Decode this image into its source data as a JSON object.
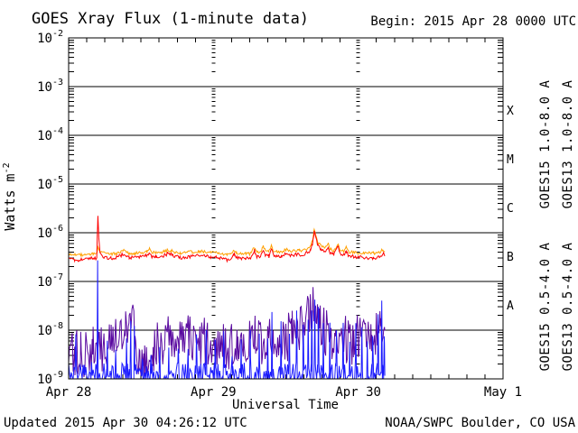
{
  "header": {
    "begin_label": "Begin:  2015 Apr 28 0000 UTC"
  },
  "footer": {
    "updated": "Updated 2015 Apr 30 04:26:12 UTC",
    "source": "NOAA/SWPC Boulder, CO USA"
  },
  "chart_data": {
    "type": "line",
    "title": "GOES Xray Flux (1-minute data)",
    "xlabel": "Universal Time",
    "ylabel_base": "Watts m",
    "ylabel_exp": "-2",
    "x_unit": "hours since 2015 Apr 28 00:00 UTC",
    "x_range_hours": [
      0,
      72
    ],
    "x_minor_tick_hours": 3,
    "x_day_ticks": [
      {
        "t": 0,
        "label": "Apr 28"
      },
      {
        "t": 24,
        "label": "Apr 29"
      },
      {
        "t": 48,
        "label": "Apr 30"
      },
      {
        "t": 72,
        "label": "May 1"
      }
    ],
    "y_log_range": [
      -9,
      -2
    ],
    "y_decade_exponents": [
      -2,
      -3,
      -4,
      -5,
      -6,
      -7,
      -8,
      -9
    ],
    "flare_classes": [
      {
        "label": "X",
        "log_center": -3.5
      },
      {
        "label": "M",
        "log_center": -4.5
      },
      {
        "label": "C",
        "log_center": -5.5
      },
      {
        "label": "B",
        "log_center": -6.5
      },
      {
        "label": "A",
        "log_center": -7.5
      }
    ],
    "grid": "decade horizontal lines solid; day boundaries shown as broken tick columns",
    "legend_position": "right, rotated 90deg",
    "data_end_hour": 52.4,
    "noise_seed": 20150430,
    "series": [
      {
        "id": "goes13-long",
        "name": "GOES13 1.0-8.0 A",
        "color": "#ffa000",
        "noise_log": 0.03,
        "points": [
          [
            0,
            3.6e-07
          ],
          [
            1,
            3.5e-07
          ],
          [
            2,
            3.5e-07
          ],
          [
            3,
            3.6e-07
          ],
          [
            4,
            3.7e-07
          ],
          [
            4.7,
            3.8e-07
          ],
          [
            4.85,
            5.2e-07
          ],
          [
            5.0,
            4.4e-07
          ],
          [
            5.5,
            4e-07
          ],
          [
            6,
            3.8e-07
          ],
          [
            7,
            3.7e-07
          ],
          [
            8,
            3.8e-07
          ],
          [
            9.2,
            4.4e-07
          ],
          [
            10,
            3.8e-07
          ],
          [
            11,
            3.8e-07
          ],
          [
            12,
            3.9e-07
          ],
          [
            13,
            4.1e-07
          ],
          [
            13.4,
            4.6e-07
          ],
          [
            13.8,
            4e-07
          ],
          [
            14.5,
            3.9e-07
          ],
          [
            15.5,
            4e-07
          ],
          [
            16.4,
            4.4e-07
          ],
          [
            17,
            4.3e-07
          ],
          [
            17.6,
            4e-07
          ],
          [
            18.5,
            3.9e-07
          ],
          [
            19.5,
            3.9e-07
          ],
          [
            20.5,
            4.1e-07
          ],
          [
            21.5,
            4.2e-07
          ],
          [
            22.5,
            4.1e-07
          ],
          [
            23.5,
            4e-07
          ],
          [
            24.5,
            3.9e-07
          ],
          [
            25.5,
            3.7e-07
          ],
          [
            26.3,
            3.5e-07
          ],
          [
            27,
            3.6e-07
          ],
          [
            27.4,
            4.4e-07
          ],
          [
            27.8,
            3.9e-07
          ],
          [
            28.5,
            3.7e-07
          ],
          [
            29.3,
            3.8e-07
          ],
          [
            30,
            3.7e-07
          ],
          [
            30.8,
            5.1e-07
          ],
          [
            31.1,
            4.1e-07
          ],
          [
            31.8,
            3.9e-07
          ],
          [
            32.2,
            5.3e-07
          ],
          [
            32.6,
            4.3e-07
          ],
          [
            33.2,
            4.1e-07
          ],
          [
            33.6,
            5.5e-07
          ],
          [
            33.9,
            4.3e-07
          ],
          [
            34.6,
            4e-07
          ],
          [
            35.3,
            3.9e-07
          ],
          [
            35.8,
            4.4e-07
          ],
          [
            36.3,
            4.5e-07
          ],
          [
            36.9,
            4.2e-07
          ],
          [
            37.5,
            4.4e-07
          ],
          [
            38.2,
            4.3e-07
          ],
          [
            39,
            4.4e-07
          ],
          [
            39.6,
            4.7e-07
          ],
          [
            40.1,
            5.2e-07
          ],
          [
            40.4,
            6.8e-07
          ],
          [
            40.7,
            1.15e-06
          ],
          [
            40.95,
            9e-07
          ],
          [
            41.3,
            6.4e-07
          ],
          [
            41.8,
            5.4e-07
          ],
          [
            42.4,
            4.8e-07
          ],
          [
            43.0,
            6e-07
          ],
          [
            43.3,
            4.6e-07
          ],
          [
            44.0,
            4.3e-07
          ],
          [
            44.7,
            6.2e-07
          ],
          [
            45.0,
            4.4e-07
          ],
          [
            45.6,
            4.1e-07
          ],
          [
            46.0,
            5.2e-07
          ],
          [
            46.4,
            4.1e-07
          ],
          [
            47.5,
            3.9e-07
          ],
          [
            49,
            3.8e-07
          ],
          [
            50.5,
            3.8e-07
          ],
          [
            51.5,
            3.9e-07
          ],
          [
            52.1,
            4.6e-07
          ],
          [
            52.4,
            4e-07
          ]
        ]
      },
      {
        "id": "goes15-long",
        "name": "GOES15 1.0-8.0 A",
        "color": "#ff0000",
        "noise_log": 0.035,
        "points": [
          [
            0,
            2.9e-07
          ],
          [
            1,
            2.8e-07
          ],
          [
            1.6,
            2.6e-07
          ],
          [
            2.2,
            2.8e-07
          ],
          [
            3,
            2.9e-07
          ],
          [
            4,
            3e-07
          ],
          [
            4.65,
            3e-07
          ],
          [
            4.75,
            9e-07
          ],
          [
            4.85,
            2.4e-06
          ],
          [
            5.0,
            8e-07
          ],
          [
            5.2,
            4.2e-07
          ],
          [
            5.6,
            3.3e-07
          ],
          [
            6,
            3.1e-07
          ],
          [
            7,
            3e-07
          ],
          [
            8,
            3.1e-07
          ],
          [
            9.2,
            3.7e-07
          ],
          [
            10,
            3.1e-07
          ],
          [
            11,
            3.1e-07
          ],
          [
            12,
            3.2e-07
          ],
          [
            13,
            3.4e-07
          ],
          [
            13.4,
            3.9e-07
          ],
          [
            13.8,
            3.3e-07
          ],
          [
            14.5,
            3.2e-07
          ],
          [
            15.5,
            3.3e-07
          ],
          [
            16.4,
            3.7e-07
          ],
          [
            17,
            3.6e-07
          ],
          [
            17.6,
            3.3e-07
          ],
          [
            18.5,
            3.1e-07
          ],
          [
            19.5,
            3.1e-07
          ],
          [
            20.5,
            3.3e-07
          ],
          [
            21.5,
            3.4e-07
          ],
          [
            22.5,
            3.3e-07
          ],
          [
            23.5,
            3.2e-07
          ],
          [
            24.5,
            3.1e-07
          ],
          [
            25.5,
            2.9e-07
          ],
          [
            26.3,
            2.7e-07
          ],
          [
            27,
            2.8e-07
          ],
          [
            27.4,
            3.6e-07
          ],
          [
            27.8,
            3.1e-07
          ],
          [
            28.5,
            2.9e-07
          ],
          [
            29.3,
            3e-07
          ],
          [
            30,
            2.9e-07
          ],
          [
            30.8,
            4.3e-07
          ],
          [
            31.1,
            3.3e-07
          ],
          [
            31.8,
            3.1e-07
          ],
          [
            32.2,
            4.5e-07
          ],
          [
            32.6,
            3.5e-07
          ],
          [
            33.2,
            3.3e-07
          ],
          [
            33.6,
            4.7e-07
          ],
          [
            33.9,
            3.5e-07
          ],
          [
            34.6,
            3.2e-07
          ],
          [
            35.3,
            3.1e-07
          ],
          [
            35.8,
            3.6e-07
          ],
          [
            36.3,
            3.7e-07
          ],
          [
            36.9,
            3.4e-07
          ],
          [
            37.5,
            3.6e-07
          ],
          [
            38.2,
            3.5e-07
          ],
          [
            39,
            3.6e-07
          ],
          [
            39.6,
            3.9e-07
          ],
          [
            40.1,
            4.4e-07
          ],
          [
            40.4,
            5.8e-07
          ],
          [
            40.7,
            1.05e-06
          ],
          [
            40.95,
            7.8e-07
          ],
          [
            41.3,
            5.4e-07
          ],
          [
            41.8,
            4.5e-07
          ],
          [
            42.4,
            4e-07
          ],
          [
            43.0,
            5e-07
          ],
          [
            43.3,
            3.8e-07
          ],
          [
            44.0,
            3.6e-07
          ],
          [
            44.7,
            5.2e-07
          ],
          [
            45.0,
            3.7e-07
          ],
          [
            45.6,
            3.4e-07
          ],
          [
            46.0,
            4.3e-07
          ],
          [
            46.4,
            3.4e-07
          ],
          [
            47.5,
            3.2e-07
          ],
          [
            49,
            3.1e-07
          ],
          [
            50.5,
            3e-07
          ],
          [
            51.5,
            3.1e-07
          ],
          [
            52.1,
            3.8e-07
          ],
          [
            52.4,
            3.3e-07
          ]
        ]
      },
      {
        "id": "goes13-short",
        "name": "GOES13 0.5-4.0 A",
        "color": "#5a0aa0",
        "noise_log": 0.5,
        "points": [
          [
            0,
            3.5e-09
          ],
          [
            1,
            3e-09
          ],
          [
            2,
            4e-09
          ],
          [
            3,
            3e-09
          ],
          [
            4,
            4.5e-09
          ],
          [
            5,
            4e-09
          ],
          [
            6,
            3.5e-09
          ],
          [
            7,
            4.5e-09
          ],
          [
            8,
            6e-09
          ],
          [
            8.7,
            9e-09
          ],
          [
            9.4,
            1.3e-08
          ],
          [
            10,
            1.6e-08
          ],
          [
            10.5,
            1.8e-08
          ],
          [
            11,
            1.2e-08
          ],
          [
            11.4,
            5e-09
          ],
          [
            11.8,
            2.2e-09
          ],
          [
            12.5,
            1.8e-09
          ],
          [
            13.2,
            2.5e-09
          ],
          [
            14,
            4e-09
          ],
          [
            15,
            5.5e-09
          ],
          [
            16,
            6.5e-09
          ],
          [
            17,
            6e-09
          ],
          [
            18,
            5.5e-09
          ],
          [
            19,
            6e-09
          ],
          [
            20,
            6.5e-09
          ],
          [
            21,
            6e-09
          ],
          [
            22,
            5.5e-09
          ],
          [
            23,
            6e-09
          ],
          [
            24,
            5.5e-09
          ],
          [
            25,
            5e-09
          ],
          [
            26,
            4.5e-09
          ],
          [
            27,
            5e-09
          ],
          [
            28,
            5.5e-09
          ],
          [
            29,
            5e-09
          ],
          [
            30,
            5.5e-09
          ],
          [
            31,
            6.5e-09
          ],
          [
            32,
            6e-09
          ],
          [
            33,
            6.5e-09
          ],
          [
            34,
            5.5e-09
          ],
          [
            35,
            6e-09
          ],
          [
            36,
            7e-09
          ],
          [
            37,
            8e-09
          ],
          [
            38,
            1e-08
          ],
          [
            39,
            1.3e-08
          ],
          [
            39.8,
            1.8e-08
          ],
          [
            40.5,
            3.2e-08
          ],
          [
            41,
            2.2e-08
          ],
          [
            41.6,
            1.3e-08
          ],
          [
            42.3,
            1e-08
          ],
          [
            43.2,
            8e-09
          ],
          [
            44.2,
            7e-09
          ],
          [
            45.2,
            6e-09
          ],
          [
            46.2,
            6.5e-09
          ],
          [
            47.2,
            6e-09
          ],
          [
            48.2,
            7e-09
          ],
          [
            49.2,
            6.5e-09
          ],
          [
            50.2,
            8e-09
          ],
          [
            51,
            1e-08
          ],
          [
            51.7,
            1.6e-08
          ],
          [
            52.1,
            1.2e-08
          ],
          [
            52.4,
            8e-09
          ]
        ]
      },
      {
        "id": "goes15-short",
        "name": "GOES15 0.5-4.0 A",
        "color": "#1a1aff",
        "noise_log": 0.28,
        "baseline": 1.15e-09,
        "spike_half_width_h": 0.1,
        "spikes": [
          [
            1.2,
            5e-09
          ],
          [
            2.6,
            3.5e-09
          ],
          [
            3.8,
            2.5e-09
          ],
          [
            4.8,
            2.3e-07
          ],
          [
            6.4,
            4e-09
          ],
          [
            7.8,
            3e-09
          ],
          [
            9.6,
            7e-09
          ],
          [
            10.3,
            1.1e-08
          ],
          [
            10.9,
            8e-09
          ],
          [
            12.2,
            2.5e-09
          ],
          [
            13.6,
            3e-09
          ],
          [
            15.1,
            4e-09
          ],
          [
            16.6,
            3.5e-09
          ],
          [
            18.2,
            5e-09
          ],
          [
            19.8,
            3.5e-09
          ],
          [
            21.2,
            4.5e-09
          ],
          [
            22.8,
            6e-09
          ],
          [
            24.3,
            4e-09
          ],
          [
            25.7,
            5e-09
          ],
          [
            27.1,
            4e-09
          ],
          [
            28.6,
            3.5e-09
          ],
          [
            30.1,
            5.5e-09
          ],
          [
            31.6,
            4.5e-09
          ],
          [
            33.0,
            6e-09
          ],
          [
            33.7,
            2e-08
          ],
          [
            35.2,
            1.4e-08
          ],
          [
            36.6,
            8e-09
          ],
          [
            37.8,
            2.6e-08
          ],
          [
            38.9,
            1.6e-08
          ],
          [
            39.7,
            2.2e-08
          ],
          [
            40.3,
            3.2e-08
          ],
          [
            40.8,
            2.6e-08
          ],
          [
            41.4,
            1.8e-08
          ],
          [
            42.2,
            9e-09
          ],
          [
            43.3,
            1.9e-08
          ],
          [
            44.4,
            7e-09
          ],
          [
            45.5,
            1.2e-08
          ],
          [
            46.6,
            6e-09
          ],
          [
            47.6,
            2.4e-08
          ],
          [
            48.6,
            9e-09
          ],
          [
            49.5,
            1.1e-08
          ],
          [
            50.4,
            1.3e-08
          ],
          [
            51.3,
            2.2e-08
          ],
          [
            51.9,
            2.8e-08
          ],
          [
            52.3,
            1.1e-08
          ]
        ]
      }
    ]
  }
}
